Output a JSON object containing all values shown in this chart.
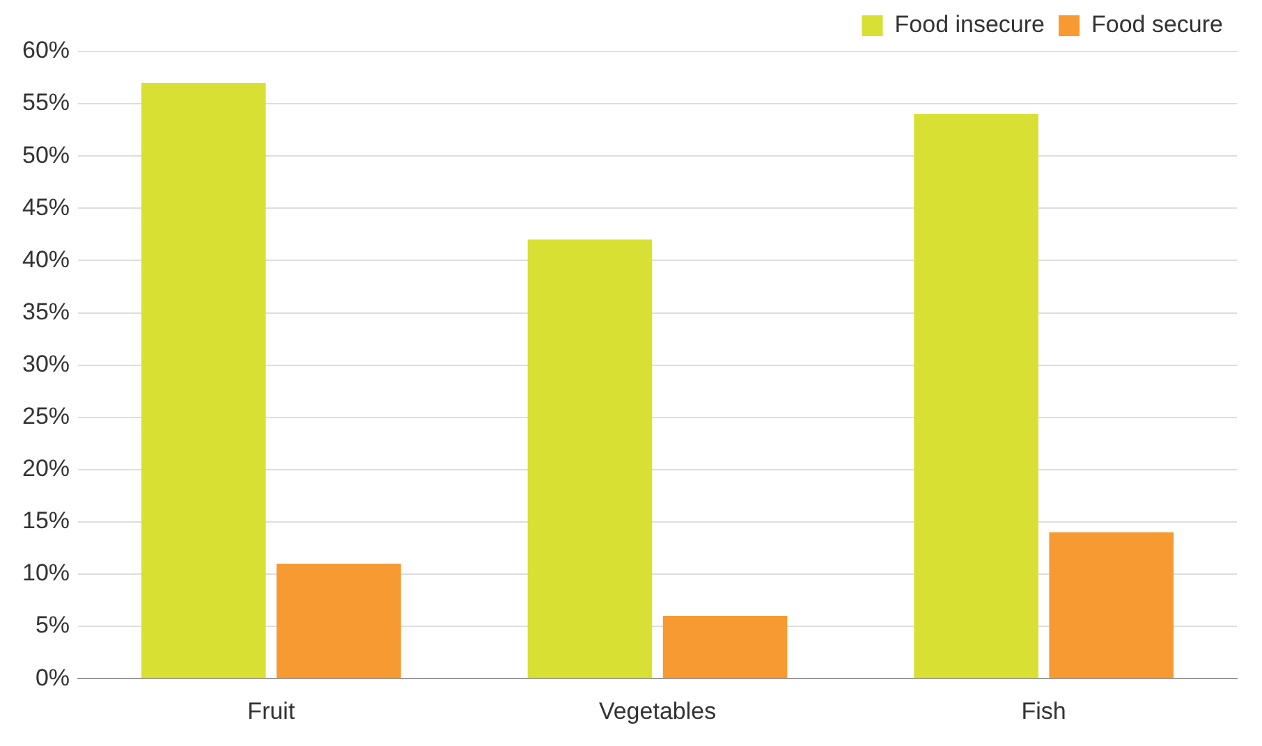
{
  "chart_data": {
    "type": "bar",
    "categories": [
      "Fruit",
      "Vegetables",
      "Fish"
    ],
    "series": [
      {
        "name": "Food insecure",
        "color": "#d8e033",
        "values": [
          57,
          42,
          54
        ]
      },
      {
        "name": "Food secure",
        "color": "#f79a32",
        "values": [
          11,
          6,
          14
        ]
      }
    ],
    "ylim": [
      0,
      60
    ],
    "yticks": [
      {
        "value": 0,
        "label": "0%"
      },
      {
        "value": 5,
        "label": "5%"
      },
      {
        "value": 10,
        "label": "10%"
      },
      {
        "value": 15,
        "label": "15%"
      },
      {
        "value": 20,
        "label": "20%"
      },
      {
        "value": 25,
        "label": "25%"
      },
      {
        "value": 30,
        "label": "30%"
      },
      {
        "value": 35,
        "label": "35%"
      },
      {
        "value": 40,
        "label": "40%"
      },
      {
        "value": 45,
        "label": "45%"
      },
      {
        "value": 50,
        "label": "50%"
      },
      {
        "value": 55,
        "label": "55%"
      },
      {
        "value": 60,
        "label": "60%"
      }
    ],
    "grid": "y",
    "legend": "top right"
  }
}
